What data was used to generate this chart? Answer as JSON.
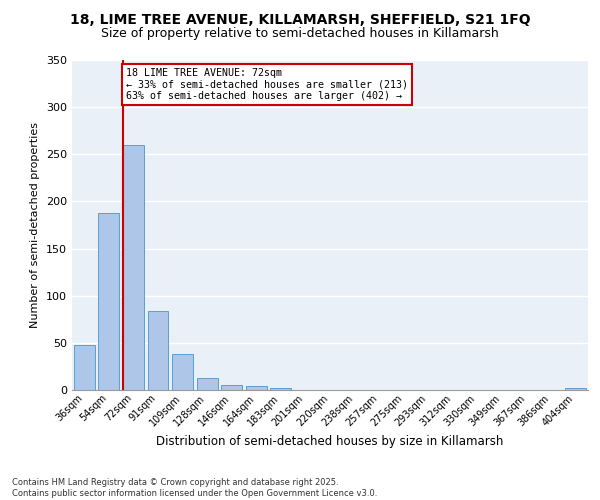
{
  "title1": "18, LIME TREE AVENUE, KILLAMARSH, SHEFFIELD, S21 1FQ",
  "title2": "Size of property relative to semi-detached houses in Killamarsh",
  "xlabel": "Distribution of semi-detached houses by size in Killamarsh",
  "ylabel": "Number of semi-detached properties",
  "categories": [
    "36sqm",
    "54sqm",
    "72sqm",
    "91sqm",
    "109sqm",
    "128sqm",
    "146sqm",
    "164sqm",
    "183sqm",
    "201sqm",
    "220sqm",
    "238sqm",
    "257sqm",
    "275sqm",
    "293sqm",
    "312sqm",
    "330sqm",
    "349sqm",
    "367sqm",
    "386sqm",
    "404sqm"
  ],
  "values": [
    48,
    188,
    260,
    84,
    38,
    13,
    5,
    4,
    2,
    0,
    0,
    0,
    0,
    0,
    0,
    0,
    0,
    0,
    0,
    0,
    2
  ],
  "bar_color": "#aec6e8",
  "bar_edge_color": "#5a9fd4",
  "highlight_bar_index": 2,
  "annotation_title": "18 LIME TREE AVENUE: 72sqm",
  "annotation_line1": "← 33% of semi-detached houses are smaller (213)",
  "annotation_line2": "63% of semi-detached houses are larger (402) →",
  "annotation_box_color": "#ffffff",
  "annotation_box_edge_color": "#cc0000",
  "ylim": [
    0,
    350
  ],
  "yticks": [
    0,
    50,
    100,
    150,
    200,
    250,
    300,
    350
  ],
  "footer1": "Contains HM Land Registry data © Crown copyright and database right 2025.",
  "footer2": "Contains public sector information licensed under the Open Government Licence v3.0.",
  "bg_color": "#eaf0f8",
  "fig_bg_color": "#ffffff",
  "title1_fontsize": 10,
  "title2_fontsize": 9,
  "bar_width": 0.85
}
